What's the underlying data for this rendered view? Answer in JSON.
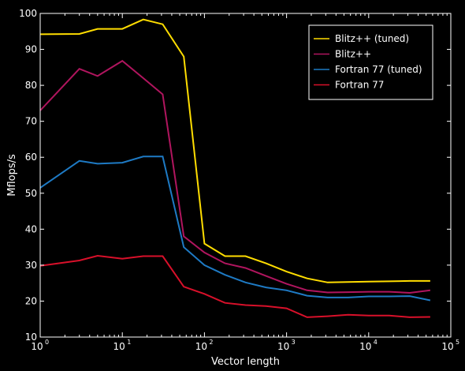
{
  "chart_data": {
    "type": "line",
    "title": "",
    "xlabel": "Vector length",
    "ylabel": "Mflops/s",
    "xscale": "log",
    "xlim": [
      1,
      100000
    ],
    "ylim": [
      10,
      100
    ],
    "xticks": [
      {
        "value": 1,
        "base": "10",
        "exp": "0"
      },
      {
        "value": 10,
        "base": "10",
        "exp": "1"
      },
      {
        "value": 100,
        "base": "10",
        "exp": "2"
      },
      {
        "value": 1000,
        "base": "10",
        "exp": "3"
      },
      {
        "value": 10000,
        "base": "10",
        "exp": "4"
      },
      {
        "value": 100000,
        "base": "10",
        "exp": "5"
      }
    ],
    "yticks": [
      10,
      20,
      30,
      40,
      50,
      60,
      70,
      80,
      90,
      100
    ],
    "grid": false,
    "legend_position": "top-right",
    "background_color": "#000000",
    "foreground_color": "#ffffff",
    "series": [
      {
        "name": "Blitz++ (tuned)",
        "color": "#ffdd00",
        "x": [
          1,
          3,
          5,
          10,
          18,
          31,
          56,
          100,
          178,
          316,
          562,
          1000,
          1780,
          3160,
          5620,
          10000,
          17800,
          31600,
          56200
        ],
        "y": [
          94.2,
          94.3,
          95.7,
          95.7,
          98.3,
          97,
          88,
          36,
          32.5,
          32.5,
          30.5,
          28.2,
          26.3,
          25.2,
          25.3,
          25.4,
          25.5,
          25.6,
          25.6
        ]
      },
      {
        "name": "Blitz++",
        "color": "#b0155e",
        "x": [
          1,
          3,
          5,
          10,
          18,
          31,
          56,
          100,
          178,
          316,
          562,
          1000,
          1780,
          3160,
          5620,
          10000,
          17800,
          31600,
          56200
        ],
        "y": [
          73,
          84.6,
          82.6,
          86.8,
          82,
          77.5,
          38,
          33.5,
          30.5,
          29.2,
          27,
          24.8,
          23,
          22.4,
          22.5,
          22.6,
          22.6,
          22.3,
          23
        ]
      },
      {
        "name": "Fortran 77 (tuned)",
        "color": "#1e7ac4",
        "x": [
          1,
          3,
          5,
          10,
          18,
          31,
          56,
          100,
          178,
          316,
          562,
          1000,
          1780,
          3160,
          5620,
          10000,
          17800,
          31600,
          56200
        ],
        "y": [
          51.5,
          59,
          58.2,
          58.5,
          60.2,
          60.2,
          35,
          30,
          27.3,
          25.2,
          23.8,
          23,
          21.5,
          21,
          21,
          21.3,
          21.3,
          21.4,
          20.2
        ]
      },
      {
        "name": "Fortran 77",
        "color": "#d8102a",
        "x": [
          1,
          3,
          5,
          10,
          18,
          31,
          56,
          100,
          178,
          316,
          562,
          1000,
          1780,
          3160,
          5620,
          10000,
          17800,
          31600,
          56200
        ],
        "y": [
          29.8,
          31.3,
          32.6,
          31.8,
          32.5,
          32.5,
          24,
          22,
          19.5,
          18.9,
          18.6,
          18,
          15.5,
          15.8,
          16.2,
          16,
          16,
          15.5,
          15.6
        ]
      }
    ]
  }
}
